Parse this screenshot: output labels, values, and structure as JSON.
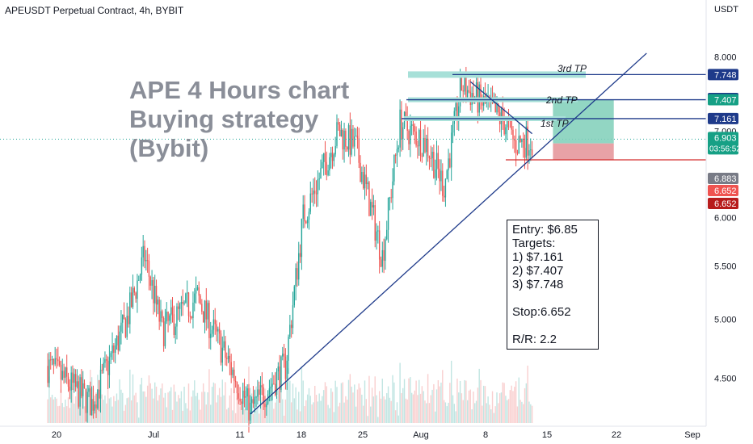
{
  "header": {
    "title": "APEUSDT Perpetual Contract, 4h, BYBIT"
  },
  "headline": {
    "line1": "APE 4 Hours chart",
    "line2": "Buying strategy",
    "line3": "(Bybit)"
  },
  "note": {
    "entry": "Entry: $6.85",
    "targets_title": "Targets:",
    "t1": "1) $7.161",
    "t2": "2) $7.407",
    "t3": "3) $7.748",
    "stop": "Stop:6.652",
    "rr": "R/R: 2.2"
  },
  "tp_labels": {
    "tp1": "1st TP",
    "tp2": "2nd TP",
    "tp3": "3rd TP"
  },
  "price_axis": {
    "unit": "USDT",
    "ticks": [
      "8.000",
      "7.000",
      "6.000",
      "5.500",
      "5.000",
      "4.500"
    ],
    "badges": [
      {
        "text": "7.748",
        "color": "#1e3a8a"
      },
      {
        "text": "7.407",
        "color": "#1e3a8a"
      },
      {
        "text": "7.407",
        "color": "#16a085"
      },
      {
        "text": "7.161",
        "color": "#1e3a8a"
      },
      {
        "text": "6.903",
        "sub": "03:56:52",
        "color": "#16a085"
      },
      {
        "text": "6.883",
        "color": "#787b86"
      },
      {
        "text": "6.652",
        "color": "#ef5350"
      },
      {
        "text": "6.652",
        "color": "#b71c1c"
      }
    ]
  },
  "time_axis": {
    "ticks": [
      "20",
      "Jul",
      "11",
      "18",
      "25",
      "Aug",
      "8",
      "15",
      "22",
      "Sep"
    ]
  },
  "chart_data": {
    "type": "candlestick",
    "symbol": "APEUSDT",
    "timeframe": "4h",
    "exchange": "BYBIT",
    "y_scale": "log",
    "ylim": [
      4.2,
      8.2
    ],
    "grid": false,
    "anchors": [
      [
        "Jun 19",
        4.6
      ],
      [
        "Jun 24",
        4.3
      ],
      [
        "Jun 28",
        5.0
      ],
      [
        "Jun 30",
        5.6
      ],
      [
        "Jul 2",
        4.9
      ],
      [
        "Jul 6",
        5.2
      ],
      [
        "Jul 10",
        4.55
      ],
      [
        "Jul 12",
        4.25
      ],
      [
        "Jul 16",
        4.6
      ],
      [
        "Jul 18",
        6.0
      ],
      [
        "Jul 22",
        7.0
      ],
      [
        "Jul 24",
        6.8
      ],
      [
        "Jul 27",
        5.6
      ],
      [
        "Jul 29",
        7.1
      ],
      [
        "Aug 1",
        6.85
      ],
      [
        "Aug 3",
        6.35
      ],
      [
        "Aug 5",
        7.6
      ],
      [
        "Aug 8",
        7.3
      ],
      [
        "Aug 10",
        7.1
      ],
      [
        "Aug 11",
        6.85
      ],
      [
        "Aug 13",
        6.903
      ]
    ],
    "current_price": 6.903,
    "levels": {
      "entry": 6.85,
      "tp1": 7.161,
      "tp2": 7.407,
      "tp3": 7.748,
      "stop": 6.652,
      "risk_reward": 2.2
    },
    "trendlines": [
      {
        "name": "ascending support",
        "from": [
          "Jul 12",
          4.22
        ],
        "to": [
          "Aug 26",
          8.05
        ]
      },
      {
        "name": "descending resistance",
        "from": [
          "Aug 6",
          7.65
        ],
        "to": [
          "Aug 13",
          6.97
        ]
      }
    ],
    "colors": {
      "up": "#26a69a",
      "down": "#ef5350",
      "line": "#1e3a8a",
      "target": "#7fcfb9",
      "stop": "#e6989c"
    }
  }
}
